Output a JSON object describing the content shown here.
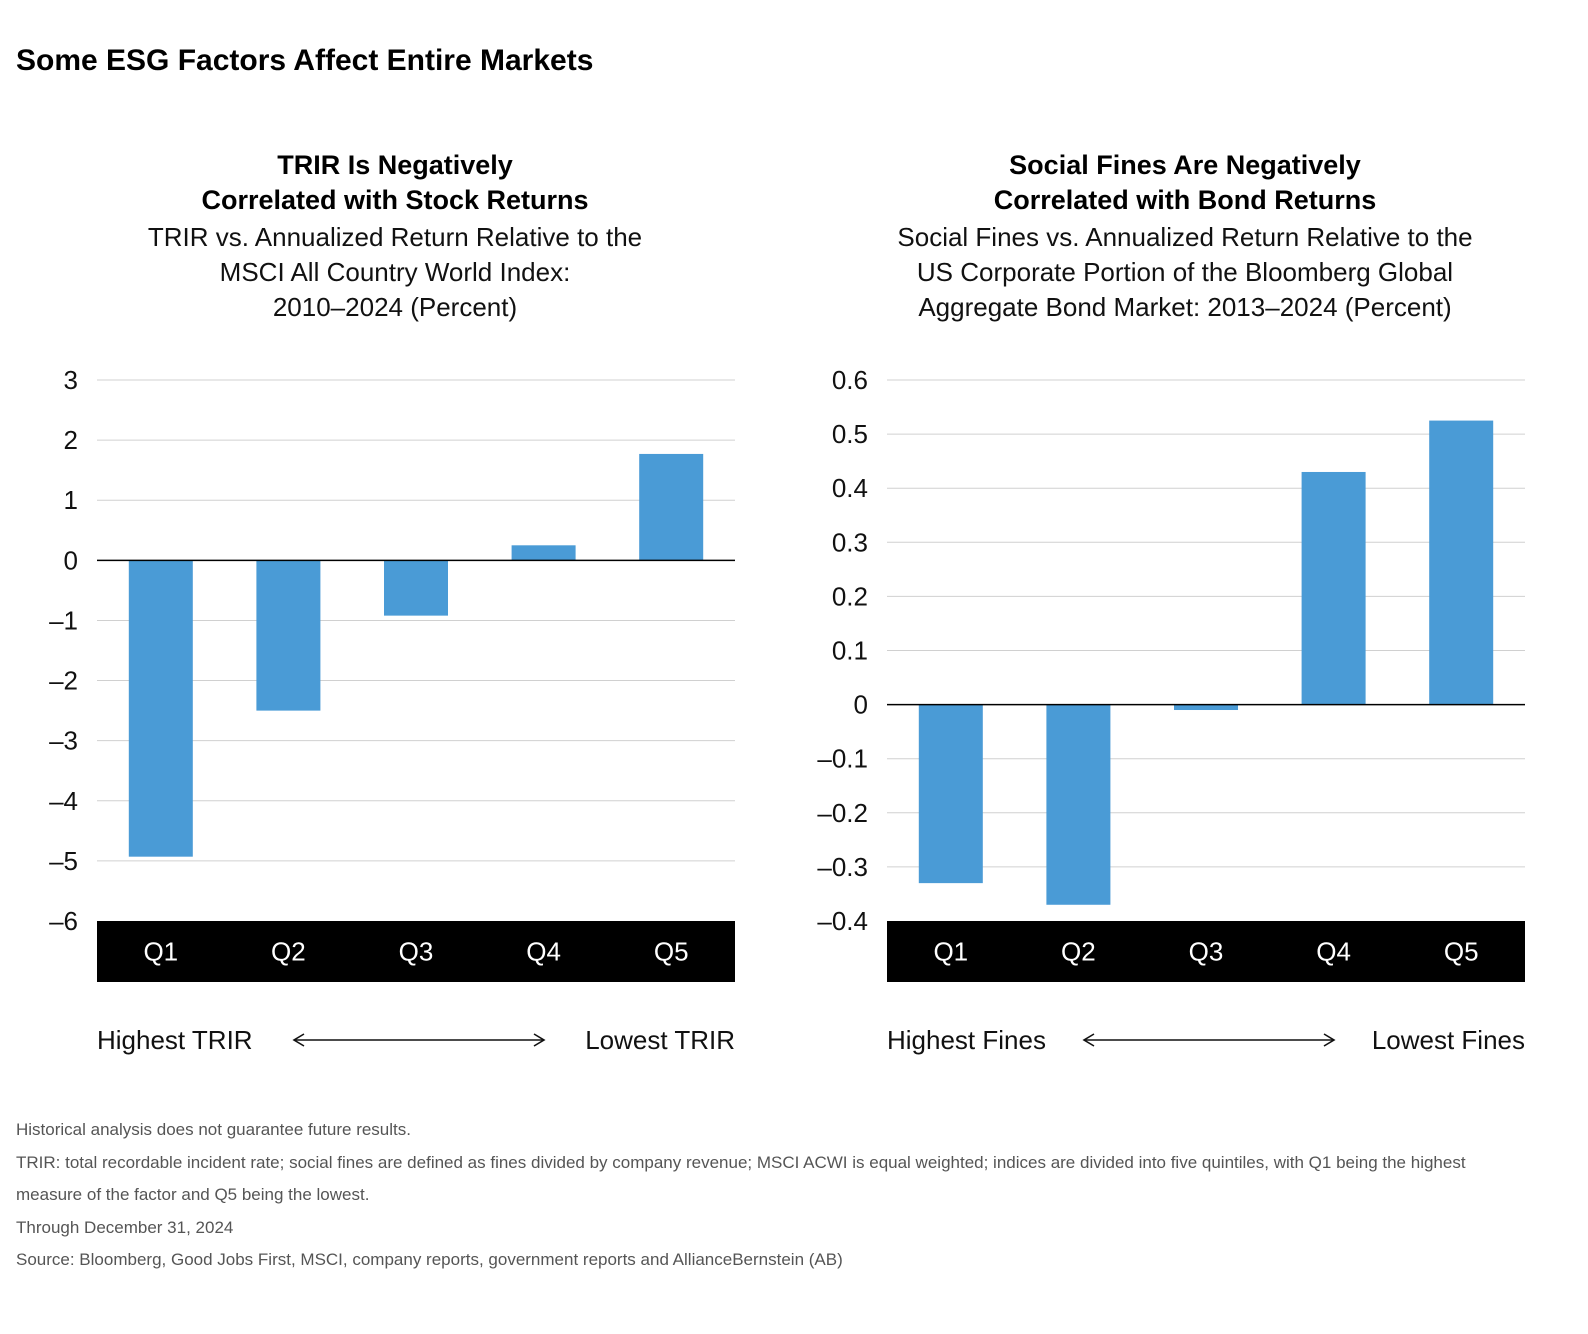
{
  "page_title": "Some ESG Factors Affect Entire Markets",
  "colors": {
    "bar": "#4a9bd6",
    "grid": "#d0d0d0",
    "category_band": "#000000",
    "category_text": "#ffffff"
  },
  "chart_data": [
    {
      "type": "bar",
      "title_lines": [
        "TRIR Is Negatively",
        "Correlated with Stock Returns"
      ],
      "subtitle_lines": [
        "TRIR vs. Annualized Return Relative to the",
        "MSCI All Country World Index:",
        "2010–2024 (Percent)"
      ],
      "categories": [
        "Q1",
        "Q2",
        "Q3",
        "Q4",
        "Q5"
      ],
      "values": [
        -4.93,
        -2.5,
        -0.92,
        0.25,
        1.77
      ],
      "ylim": [
        -6,
        3
      ],
      "yticks": [
        3,
        2,
        1,
        0,
        -1,
        -2,
        -3,
        -4,
        -5,
        -6
      ],
      "ytick_labels": [
        "3",
        "2",
        "1",
        "0",
        "–1",
        "–2",
        "–3",
        "–4",
        "–5",
        "–6"
      ],
      "grid": true,
      "legend": "none",
      "scale_left_label": "Highest TRIR",
      "scale_right_label": "Lowest TRIR"
    },
    {
      "type": "bar",
      "title_lines": [
        "Social Fines Are Negatively",
        "Correlated with Bond Returns"
      ],
      "subtitle_lines": [
        "Social Fines vs. Annualized Return Relative to the",
        "US Corporate Portion of the Bloomberg Global",
        "Aggregate Bond Market: 2013–2024 (Percent)"
      ],
      "categories": [
        "Q1",
        "Q2",
        "Q3",
        "Q4",
        "Q5"
      ],
      "values": [
        -0.33,
        -0.37,
        -0.01,
        0.43,
        0.525
      ],
      "ylim": [
        -0.4,
        0.6
      ],
      "yticks": [
        0.6,
        0.5,
        0.4,
        0.3,
        0.2,
        0.1,
        0,
        -0.1,
        -0.2,
        -0.3,
        -0.4
      ],
      "ytick_labels": [
        "0.6",
        "0.5",
        "0.4",
        "0.3",
        "0.2",
        "0.1",
        "0",
        "–0.1",
        "–0.2",
        "–0.3",
        "–0.4"
      ],
      "grid": true,
      "legend": "none",
      "scale_left_label": "Highest Fines",
      "scale_right_label": "Lowest Fines"
    }
  ],
  "footnotes": [
    "Historical analysis does not guarantee future results.",
    "TRIR: total recordable incident rate; social fines are defined as fines divided by company revenue; MSCI ACWI is equal weighted; indices are divided into five quintiles, with Q1 being the highest",
    "measure of the factor and Q5 being the lowest.",
    "Through December 31, 2024",
    "Source: Bloomberg, Good Jobs First, MSCI, company reports, government reports and AllianceBernstein (AB)"
  ]
}
